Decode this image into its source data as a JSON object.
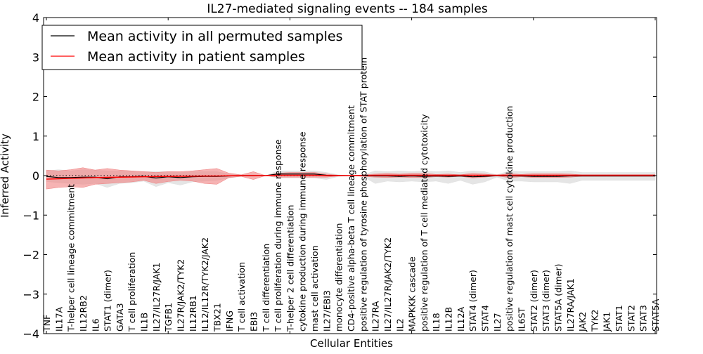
{
  "chart_data": {
    "type": "line",
    "title": "IL27-mediated signaling events -- 184 samples",
    "xlabel": "Cellular Entities",
    "ylabel": "Inferred Activity",
    "ylim": [
      -4,
      4
    ],
    "yticks": [
      "4",
      "3",
      "2",
      "1",
      "0",
      "−1",
      "−2",
      "−3",
      "−4"
    ],
    "ytick_values": [
      4,
      3,
      2,
      1,
      0,
      -1,
      -2,
      -3,
      -4
    ],
    "legend": {
      "placement": "top-left",
      "entries": [
        {
          "label": "Mean activity in all permuted samples",
          "color": "#000000"
        },
        {
          "label": "Mean activity in patient samples",
          "color": "#ff0000"
        }
      ]
    },
    "categories": [
      "TNF",
      "IL17A",
      "T-helper cell lineage commitment",
      "IL12RB2",
      "IL6",
      "STAT1 (dimer)",
      "GATA3",
      "T cell proliferation",
      "IL1B",
      "IL27/IL27R/JAK1",
      "TGFB1",
      "IL27R/JAK2/TYK2",
      "IL12RB1",
      "IL12/IL12R/TYK2/JAK2",
      "TBX21",
      "IFNG",
      "T cell activation",
      "EBI3",
      "T cell differentiation",
      "T cell proliferation during immune response",
      "T-helper 2 cell differentiation",
      "cytokine production during immune response",
      "mast cell activation",
      "IL27/EBI3",
      "monocyte differentiation",
      "CD4-positive alpha-beta T cell lineage commitment",
      "positive regulation of tyrosine phosphorylation of STAT protein",
      "IL27RA",
      "IL27/IL27R/JAK2/TYK2",
      "IL2",
      "MAPKKK cascade",
      "positive regulation of T cell mediated cytotoxicity",
      "IL18",
      "IL12B",
      "IL12A",
      "STAT4 (dimer)",
      "STAT4",
      "IL27",
      "positive regulation of mast cell cytokine production",
      "IL6ST",
      "STAT2 (dimer)",
      "STAT3 (dimer)",
      "STAT5A (dimer)",
      "IL27RA/JAK1",
      "JAK2",
      "TYK2",
      "JAK1",
      "STAT1",
      "STAT2",
      "STAT3",
      "STAT5A"
    ],
    "series": [
      {
        "name": "Mean activity in all permuted samples",
        "color": "#000000",
        "band_color": "#e0e0e0",
        "values": [
          -0.02,
          -0.05,
          -0.05,
          -0.04,
          -0.04,
          -0.08,
          -0.03,
          -0.03,
          -0.02,
          -0.06,
          -0.03,
          -0.05,
          -0.03,
          -0.02,
          -0.02,
          -0.01,
          0.0,
          0.0,
          0.0,
          0.04,
          0.04,
          0.04,
          0.04,
          0.01,
          0.0,
          0.0,
          0.0,
          -0.01,
          -0.01,
          -0.02,
          -0.01,
          -0.02,
          -0.01,
          -0.02,
          -0.01,
          -0.03,
          -0.02,
          0.0,
          -0.01,
          -0.01,
          -0.02,
          -0.02,
          -0.02,
          -0.01,
          -0.01,
          -0.01,
          -0.01,
          -0.01,
          -0.01,
          -0.01,
          -0.01
        ],
        "upper": [
          0.12,
          0.15,
          0.12,
          0.15,
          0.14,
          0.12,
          0.12,
          0.12,
          0.1,
          0.1,
          0.1,
          0.08,
          0.1,
          0.1,
          0.1,
          0.04,
          0.02,
          0.02,
          0.0,
          0.12,
          0.12,
          0.12,
          0.12,
          0.08,
          0.02,
          0.0,
          0.02,
          0.12,
          0.1,
          0.12,
          0.1,
          0.12,
          0.1,
          0.12,
          0.08,
          0.12,
          0.1,
          0.02,
          0.12,
          0.1,
          0.1,
          0.1,
          0.1,
          0.12,
          0.08,
          0.08,
          0.08,
          0.08,
          0.08,
          0.08,
          0.08
        ],
        "lower": [
          -0.15,
          -0.18,
          -0.2,
          -0.22,
          -0.2,
          -0.3,
          -0.2,
          -0.18,
          -0.14,
          -0.28,
          -0.18,
          -0.24,
          -0.16,
          -0.14,
          -0.12,
          -0.06,
          -0.02,
          -0.02,
          0.0,
          -0.06,
          -0.06,
          -0.06,
          -0.06,
          -0.1,
          -0.02,
          0.0,
          -0.02,
          -0.2,
          -0.14,
          -0.16,
          -0.14,
          -0.16,
          -0.14,
          -0.2,
          -0.12,
          -0.22,
          -0.16,
          -0.04,
          -0.14,
          -0.14,
          -0.16,
          -0.16,
          -0.16,
          -0.2,
          -0.12,
          -0.12,
          -0.12,
          -0.12,
          -0.12,
          -0.12,
          -0.12
        ]
      },
      {
        "name": "Mean activity in patient samples",
        "color": "#ff0000",
        "band_color": "#f08080",
        "values": [
          -0.09,
          -0.08,
          -0.07,
          -0.06,
          -0.05,
          -0.045,
          -0.04,
          -0.035,
          -0.03,
          -0.025,
          -0.02,
          -0.018,
          -0.015,
          -0.012,
          -0.01,
          -0.005,
          0.0,
          0.0,
          0.0,
          0.01,
          0.01,
          0.01,
          0.01,
          0.0,
          0.0,
          0.0,
          0.0,
          0.01,
          0.01,
          0.01,
          0.01,
          0.01,
          0.01,
          0.01,
          0.01,
          0.01,
          0.01,
          0.01,
          0.01,
          0.01,
          0.01,
          0.01,
          0.01,
          0.01,
          0.01,
          0.01,
          0.01,
          0.01,
          0.01,
          0.01,
          0.01
        ],
        "upper": [
          0.14,
          0.12,
          0.15,
          0.2,
          0.14,
          0.18,
          0.14,
          0.12,
          0.1,
          0.08,
          0.1,
          0.1,
          0.12,
          0.15,
          0.18,
          0.06,
          0.02,
          0.1,
          0.0,
          0.06,
          0.08,
          0.08,
          0.08,
          0.04,
          0.01,
          0.0,
          0.02,
          0.04,
          0.06,
          0.04,
          0.06,
          0.06,
          0.03,
          0.04,
          0.02,
          0.06,
          0.04,
          0.01,
          0.05,
          0.03,
          0.05,
          0.05,
          0.05,
          0.04,
          0.02,
          0.02,
          0.02,
          0.02,
          0.02,
          0.02,
          0.02
        ],
        "lower": [
          -0.34,
          -0.3,
          -0.28,
          -0.3,
          -0.22,
          -0.2,
          -0.18,
          -0.16,
          -0.12,
          -0.2,
          -0.15,
          -0.12,
          -0.14,
          -0.2,
          -0.22,
          -0.05,
          -0.02,
          -0.1,
          0.0,
          -0.04,
          -0.04,
          -0.04,
          -0.04,
          -0.04,
          -0.01,
          0.0,
          -0.02,
          -0.04,
          -0.05,
          -0.04,
          -0.05,
          -0.05,
          -0.03,
          -0.04,
          -0.02,
          -0.06,
          -0.04,
          -0.01,
          -0.05,
          -0.03,
          -0.05,
          -0.05,
          -0.05,
          -0.04,
          -0.02,
          -0.02,
          -0.02,
          -0.02,
          -0.02,
          -0.02,
          -0.02
        ]
      }
    ]
  }
}
